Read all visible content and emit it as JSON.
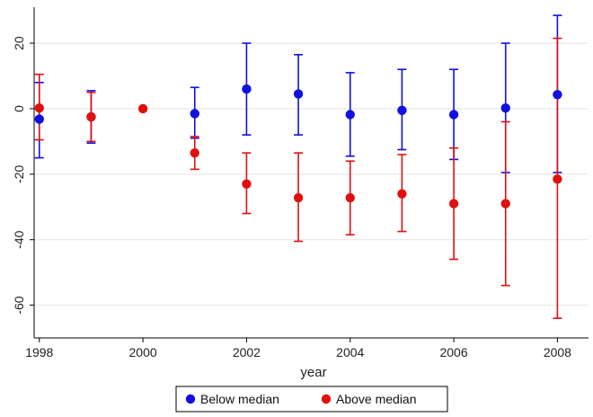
{
  "chart_data": {
    "type": "scatter",
    "xlabel": "year",
    "ylabel": "",
    "title": "",
    "x_ticks": [
      1998,
      2000,
      2002,
      2004,
      2006,
      2008
    ],
    "y_ticks": [
      20,
      0,
      -20,
      -40,
      -60
    ],
    "xlim": [
      1997.9,
      2008.6
    ],
    "ylim": [
      -70,
      31
    ],
    "grid": "horizontal",
    "legend_position": "bottom",
    "series": [
      {
        "name": "Below median",
        "color": "#1010e0",
        "points": [
          {
            "x": 1998,
            "y": -3.2,
            "low": -15,
            "high": 8
          },
          {
            "x": 1999,
            "y": -2.5,
            "low": -10.5,
            "high": 5.5
          },
          {
            "x": 2001,
            "y": -1.5,
            "low": -9,
            "high": 6.5
          },
          {
            "x": 2002,
            "y": 6,
            "low": -8,
            "high": 20
          },
          {
            "x": 2003,
            "y": 4.5,
            "low": -8,
            "high": 16.5
          },
          {
            "x": 2004,
            "y": -1.8,
            "low": -14.5,
            "high": 11
          },
          {
            "x": 2005,
            "y": -0.5,
            "low": -12.5,
            "high": 12
          },
          {
            "x": 2006,
            "y": -1.8,
            "low": -15.5,
            "high": 12
          },
          {
            "x": 2007,
            "y": 0.2,
            "low": -19.5,
            "high": 20
          },
          {
            "x": 2008,
            "y": 4.3,
            "low": -19.5,
            "high": 28.5
          }
        ]
      },
      {
        "name": "Above median",
        "color": "#e01010",
        "points": [
          {
            "x": 1998,
            "y": 0.2,
            "low": -9.5,
            "high": 10.5
          },
          {
            "x": 1999,
            "y": -2.5,
            "low": -10,
            "high": 5
          },
          {
            "x": 2000,
            "y": 0,
            "low": 0,
            "high": 0
          },
          {
            "x": 2001,
            "y": -13.5,
            "low": -18.5,
            "high": -8.5
          },
          {
            "x": 2002,
            "y": -23,
            "low": -32,
            "high": -13.5
          },
          {
            "x": 2003,
            "y": -27.2,
            "low": -40.5,
            "high": -13.5
          },
          {
            "x": 2004,
            "y": -27.2,
            "low": -38.5,
            "high": -16
          },
          {
            "x": 2005,
            "y": -26,
            "low": -37.5,
            "high": -14
          },
          {
            "x": 2006,
            "y": -29,
            "low": -46,
            "high": -12
          },
          {
            "x": 2007,
            "y": -29,
            "low": -54,
            "high": -4
          },
          {
            "x": 2008,
            "y": -21.5,
            "low": -64,
            "high": 21.5
          }
        ]
      }
    ]
  }
}
